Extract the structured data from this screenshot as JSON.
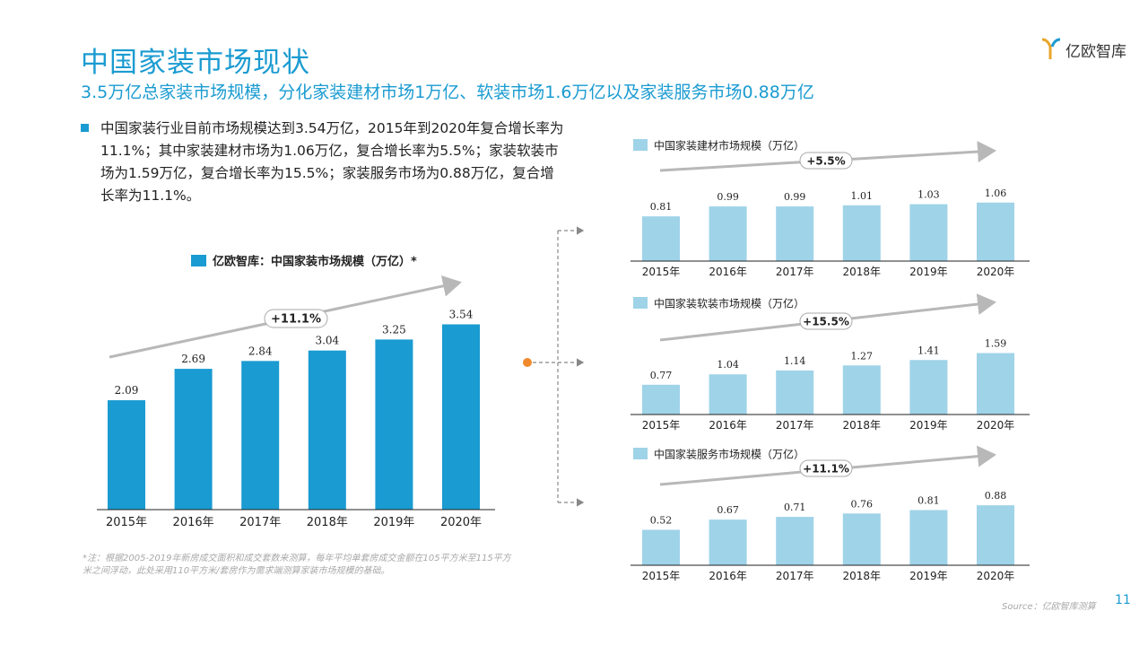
{
  "header": {
    "title": "中国家装市场现状",
    "subtitle": "3.5万亿总家装市场规模，分化家装建材市场1万亿、软装市场1.6万亿以及家装服务市场0.88万亿",
    "logo_text": "亿欧智库"
  },
  "intro": "中国家装行业目前市场规模达到3.54万亿，2015年到2020年复合增长率为11.1%；其中家装建材市场为1.06万亿，复合增长率为5.5%；家装软装市场为1.59万亿，复合增长率为15.5%；家装服务市场为0.88万亿，复合增长率为11.1%。",
  "note": "*注：根据2005-2019年新房成交面积和成交套数来测算，每年平均单套房成交金额在105平方米至115平方米之间浮动，此处采用110平方米/套房作为需求端测算家装市场规模的基础。",
  "source": "Source：亿欧智库测算",
  "page_number": "11",
  "colors": {
    "accent": "#1a9bd1",
    "light_bar": "#9fd3e8",
    "arrow": "#b8b8b8",
    "connector_dot": "#f08a2c"
  },
  "chart_data": [
    {
      "type": "bar",
      "legend": "亿欧智库：中国家装市场规模（万亿）*",
      "categories": [
        "2015年",
        "2016年",
        "2017年",
        "2018年",
        "2019年",
        "2020年"
      ],
      "values": [
        2.09,
        2.69,
        2.84,
        3.04,
        3.25,
        3.54
      ],
      "value_labels": [
        "2.09",
        "2.69",
        "2.84",
        "3.04",
        "3.25",
        "3.54"
      ],
      "growth_label": "+11.1%",
      "ylim": [
        0,
        3.6
      ],
      "color": "#1a9bd1"
    },
    {
      "type": "bar",
      "legend": "中国家装建材市场规模（万亿）",
      "categories": [
        "2015年",
        "2016年",
        "2017年",
        "2018年",
        "2019年",
        "2020年"
      ],
      "values": [
        0.81,
        0.99,
        0.99,
        1.01,
        1.03,
        1.06
      ],
      "value_labels": [
        "0.81",
        "0.99",
        "0.99",
        "1.01",
        "1.03",
        "1.06"
      ],
      "growth_label": "+5.5%",
      "ylim": [
        0,
        1.3
      ],
      "color": "#9fd3e8"
    },
    {
      "type": "bar",
      "legend": "中国家装软装市场规模（万亿）",
      "categories": [
        "2015年",
        "2016年",
        "2017年",
        "2018年",
        "2019年",
        "2020年"
      ],
      "values": [
        0.77,
        1.04,
        1.14,
        1.27,
        1.41,
        1.59
      ],
      "value_labels": [
        "0.77",
        "1.04",
        "1.14",
        "1.27",
        "1.41",
        "1.59"
      ],
      "growth_label": "+15.5%",
      "ylim": [
        0,
        1.95
      ],
      "color": "#9fd3e8"
    },
    {
      "type": "bar",
      "legend": "中国家装服务市场规模（万亿）",
      "categories": [
        "2015年",
        "2016年",
        "2017年",
        "2018年",
        "2019年",
        "2020年"
      ],
      "values": [
        0.52,
        0.67,
        0.71,
        0.76,
        0.81,
        0.88
      ],
      "value_labels": [
        "0.52",
        "0.67",
        "0.71",
        "0.76",
        "0.81",
        "0.88"
      ],
      "growth_label": "+11.1%",
      "ylim": [
        0,
        1.08
      ],
      "color": "#9fd3e8"
    }
  ]
}
